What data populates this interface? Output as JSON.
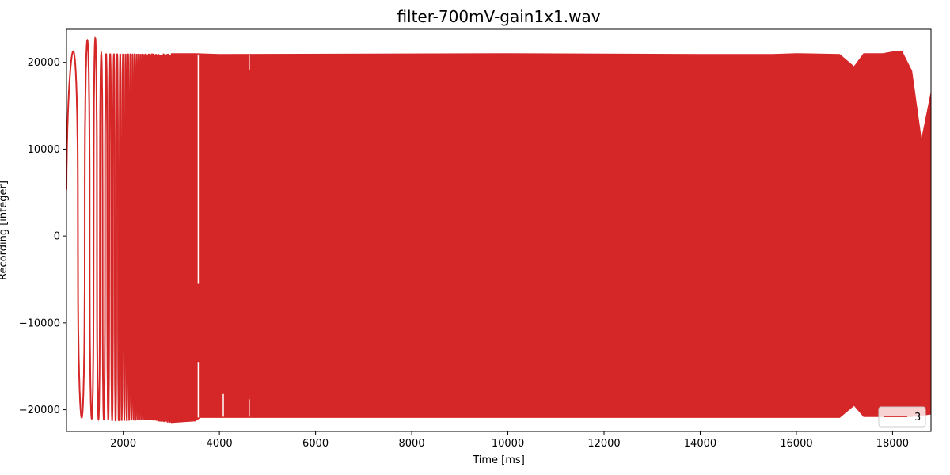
{
  "chart_data": {
    "type": "line",
    "title": "filter-700mV-gain1x1.wav",
    "xlabel": "Time [ms]",
    "ylabel": "Recording [integer]",
    "xlim": [
      820,
      18800
    ],
    "ylim": [
      -22500,
      23800
    ],
    "xticks": [
      2000,
      4000,
      6000,
      8000,
      10000,
      12000,
      14000,
      16000,
      18000
    ],
    "yticks": [
      -20000,
      -10000,
      0,
      10000,
      20000
    ],
    "grid": false,
    "legend": {
      "placement": "lower-right"
    },
    "series": [
      {
        "name": "3",
        "color": "#d62728",
        "envelope_upper": [
          [
            820,
            21000
          ],
          [
            900,
            21000
          ],
          [
            1400,
            23200
          ],
          [
            1500,
            21000
          ],
          [
            3500,
            21000
          ],
          [
            4000,
            20900
          ],
          [
            10000,
            21000
          ],
          [
            14000,
            20900
          ],
          [
            15500,
            20900
          ],
          [
            16000,
            21000
          ],
          [
            16900,
            20900
          ],
          [
            17200,
            19500
          ],
          [
            17400,
            21000
          ],
          [
            17800,
            21000
          ],
          [
            18000,
            21200
          ],
          [
            18200,
            21200
          ],
          [
            18400,
            19000
          ],
          [
            18600,
            11000
          ],
          [
            18800,
            16500
          ]
        ],
        "envelope_lower": [
          [
            820,
            -17500
          ],
          [
            900,
            -20800
          ],
          [
            1900,
            -21300
          ],
          [
            2500,
            -21200
          ],
          [
            2950,
            -21500
          ],
          [
            3500,
            -21300
          ],
          [
            3600,
            -20900
          ],
          [
            10000,
            -20900
          ],
          [
            16000,
            -20900
          ],
          [
            16900,
            -20900
          ],
          [
            17200,
            -19500
          ],
          [
            17400,
            -20800
          ],
          [
            18000,
            -20800
          ],
          [
            18400,
            -20800
          ],
          [
            18800,
            -20500
          ]
        ]
      }
    ]
  }
}
